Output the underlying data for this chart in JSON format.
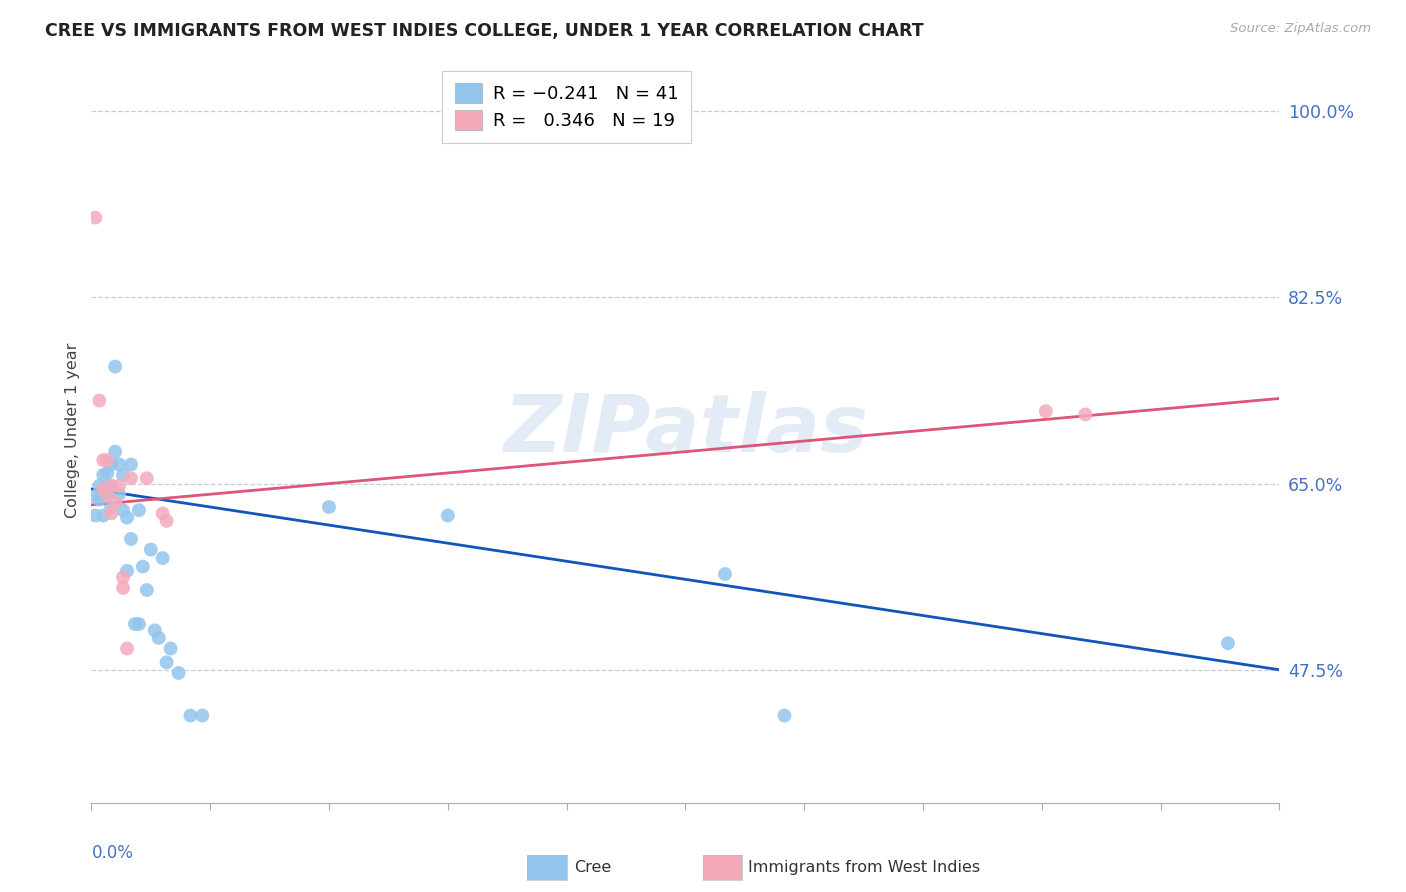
{
  "title": "CREE VS IMMIGRANTS FROM WEST INDIES COLLEGE, UNDER 1 YEAR CORRELATION CHART",
  "source": "Source: ZipAtlas.com",
  "ylabel": "College, Under 1 year",
  "ytick_labels": [
    "47.5%",
    "65.0%",
    "82.5%",
    "100.0%"
  ],
  "ytick_values": [
    0.475,
    0.65,
    0.825,
    1.0
  ],
  "xmin": 0.0,
  "xmax": 0.3,
  "ymin": 0.35,
  "ymax": 1.05,
  "legend_entry1": "R = −0.241   N = 41",
  "legend_entry2": "R =   0.346   N = 19",
  "cree_color": "#92C5EC",
  "west_indies_color": "#F4AABB",
  "blue_line_color": "#1155BB",
  "pink_line_color": "#DD5577",
  "watermark": "ZIPatlas",
  "blue_line_y0": 0.645,
  "blue_line_y1": 0.475,
  "pink_line_y0": 0.63,
  "pink_line_y1": 0.73,
  "cree_x": [
    0.001,
    0.001,
    0.002,
    0.002,
    0.003,
    0.003,
    0.003,
    0.004,
    0.004,
    0.005,
    0.005,
    0.005,
    0.006,
    0.006,
    0.007,
    0.007,
    0.008,
    0.008,
    0.009,
    0.009,
    0.01,
    0.01,
    0.011,
    0.012,
    0.012,
    0.013,
    0.014,
    0.015,
    0.016,
    0.017,
    0.018,
    0.019,
    0.02,
    0.022,
    0.025,
    0.028,
    0.06,
    0.09,
    0.16,
    0.175,
    0.287
  ],
  "cree_y": [
    0.638,
    0.62,
    0.648,
    0.635,
    0.658,
    0.64,
    0.62,
    0.66,
    0.64,
    0.668,
    0.648,
    0.628,
    0.76,
    0.68,
    0.668,
    0.64,
    0.658,
    0.625,
    0.618,
    0.568,
    0.668,
    0.598,
    0.518,
    0.625,
    0.518,
    0.572,
    0.55,
    0.588,
    0.512,
    0.505,
    0.58,
    0.482,
    0.495,
    0.472,
    0.432,
    0.432,
    0.628,
    0.62,
    0.565,
    0.432,
    0.5
  ],
  "wi_x": [
    0.001,
    0.002,
    0.003,
    0.003,
    0.004,
    0.004,
    0.005,
    0.005,
    0.006,
    0.007,
    0.008,
    0.008,
    0.009,
    0.01,
    0.014,
    0.018,
    0.019,
    0.241,
    0.251
  ],
  "wi_y": [
    0.9,
    0.728,
    0.672,
    0.645,
    0.672,
    0.64,
    0.648,
    0.622,
    0.632,
    0.648,
    0.562,
    0.552,
    0.495,
    0.655,
    0.655,
    0.622,
    0.615,
    0.718,
    0.715
  ]
}
